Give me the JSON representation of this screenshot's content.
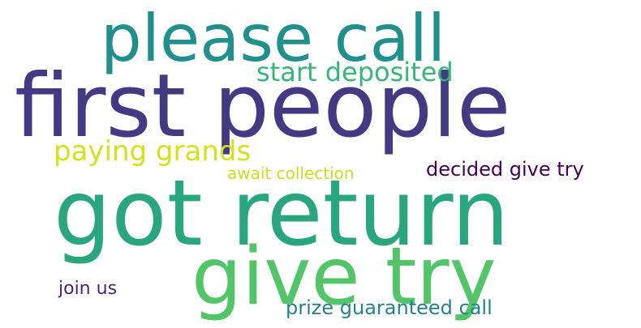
{
  "words": [
    {
      "text": "please call",
      "color": "#21908d"
    },
    {
      "text": "first people",
      "color": "#443983"
    },
    {
      "text": "start deposited",
      "color": "#35b779"
    },
    {
      "text": "paying grands",
      "color": "#d2e21b"
    },
    {
      "text": "await collection",
      "color": "#c8e020"
    },
    {
      "text": "decided give try",
      "color": "#440154"
    },
    {
      "text": "got return",
      "color": "#2aa67e"
    },
    {
      "text": "give try",
      "color": "#52c569"
    },
    {
      "text": "join us",
      "color": "#482677"
    },
    {
      "text": "prize guaranteed call",
      "color": "#26818e"
    }
  ]
}
